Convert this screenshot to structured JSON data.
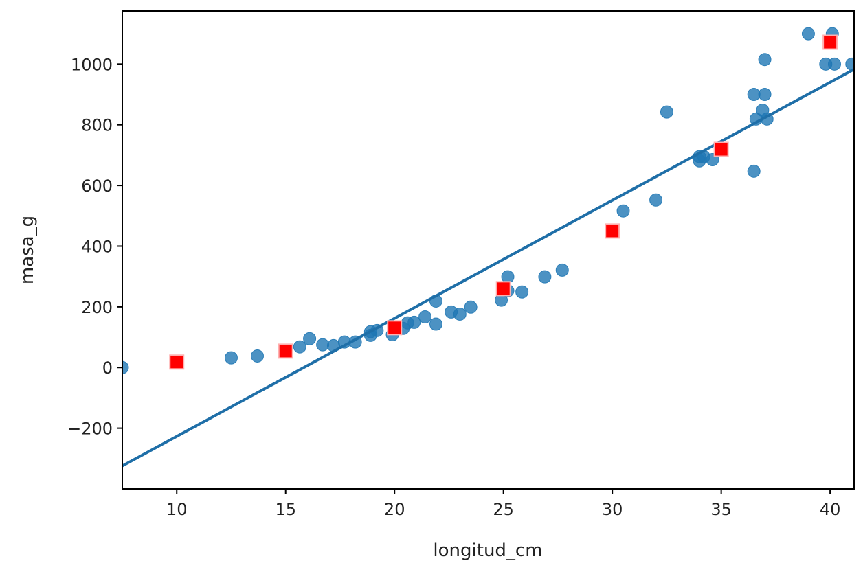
{
  "chart_data": {
    "type": "scatter",
    "title": "",
    "xlabel": "longitud_cm",
    "ylabel": "masa_g",
    "xlim": [
      7.5,
      41.1
    ],
    "ylim": [
      -400,
      1175
    ],
    "xticks": [
      10,
      15,
      20,
      25,
      30,
      35,
      40
    ],
    "yticks": [
      -200,
      0,
      200,
      400,
      600,
      800,
      1000
    ],
    "grid": false,
    "colors": {
      "points": "#1f77b4",
      "line": "#1f6fa8",
      "predictions": "#ff0000"
    },
    "series": [
      {
        "kind": "scatter",
        "marker": "circle",
        "x": [
          7.5,
          12.5,
          13.7,
          15.65,
          16.1,
          16.7,
          17.2,
          17.7,
          18.2,
          18.9,
          18.9,
          19.2,
          19.9,
          20.4,
          20.6,
          20.9,
          21.4,
          21.9,
          21.9,
          22.6,
          23.0,
          23.5,
          24.9,
          25.2,
          25.2,
          25.85,
          26.9,
          27.7,
          30.5,
          32.0,
          32.5,
          34.0,
          34.0,
          34.2,
          34.6,
          36.5,
          36.5,
          37.0,
          36.6,
          36.9,
          37.1,
          37.0,
          39.0,
          39.8,
          40.2,
          40.1,
          41.0
        ],
        "y": [
          0,
          32,
          38,
          68,
          95,
          75,
          72,
          84,
          84,
          118,
          106,
          122,
          108,
          129,
          147,
          149,
          167,
          219,
          143,
          183,
          176,
          199,
          222,
          299,
          253,
          249,
          299,
          321,
          516,
          552,
          842,
          681,
          695,
          695,
          685,
          647,
          900,
          900,
          819,
          848,
          819,
          1015,
          1100,
          1000,
          1000,
          1100,
          1000
        ]
      },
      {
        "kind": "line",
        "slope": 38.9,
        "intercept": -616,
        "x_range": [
          7.5,
          41.1
        ]
      },
      {
        "kind": "scatter",
        "marker": "square",
        "x": [
          10,
          15,
          20,
          25,
          30,
          35,
          40
        ],
        "y": [
          18,
          54,
          131,
          260,
          450,
          719,
          1072
        ]
      }
    ]
  }
}
